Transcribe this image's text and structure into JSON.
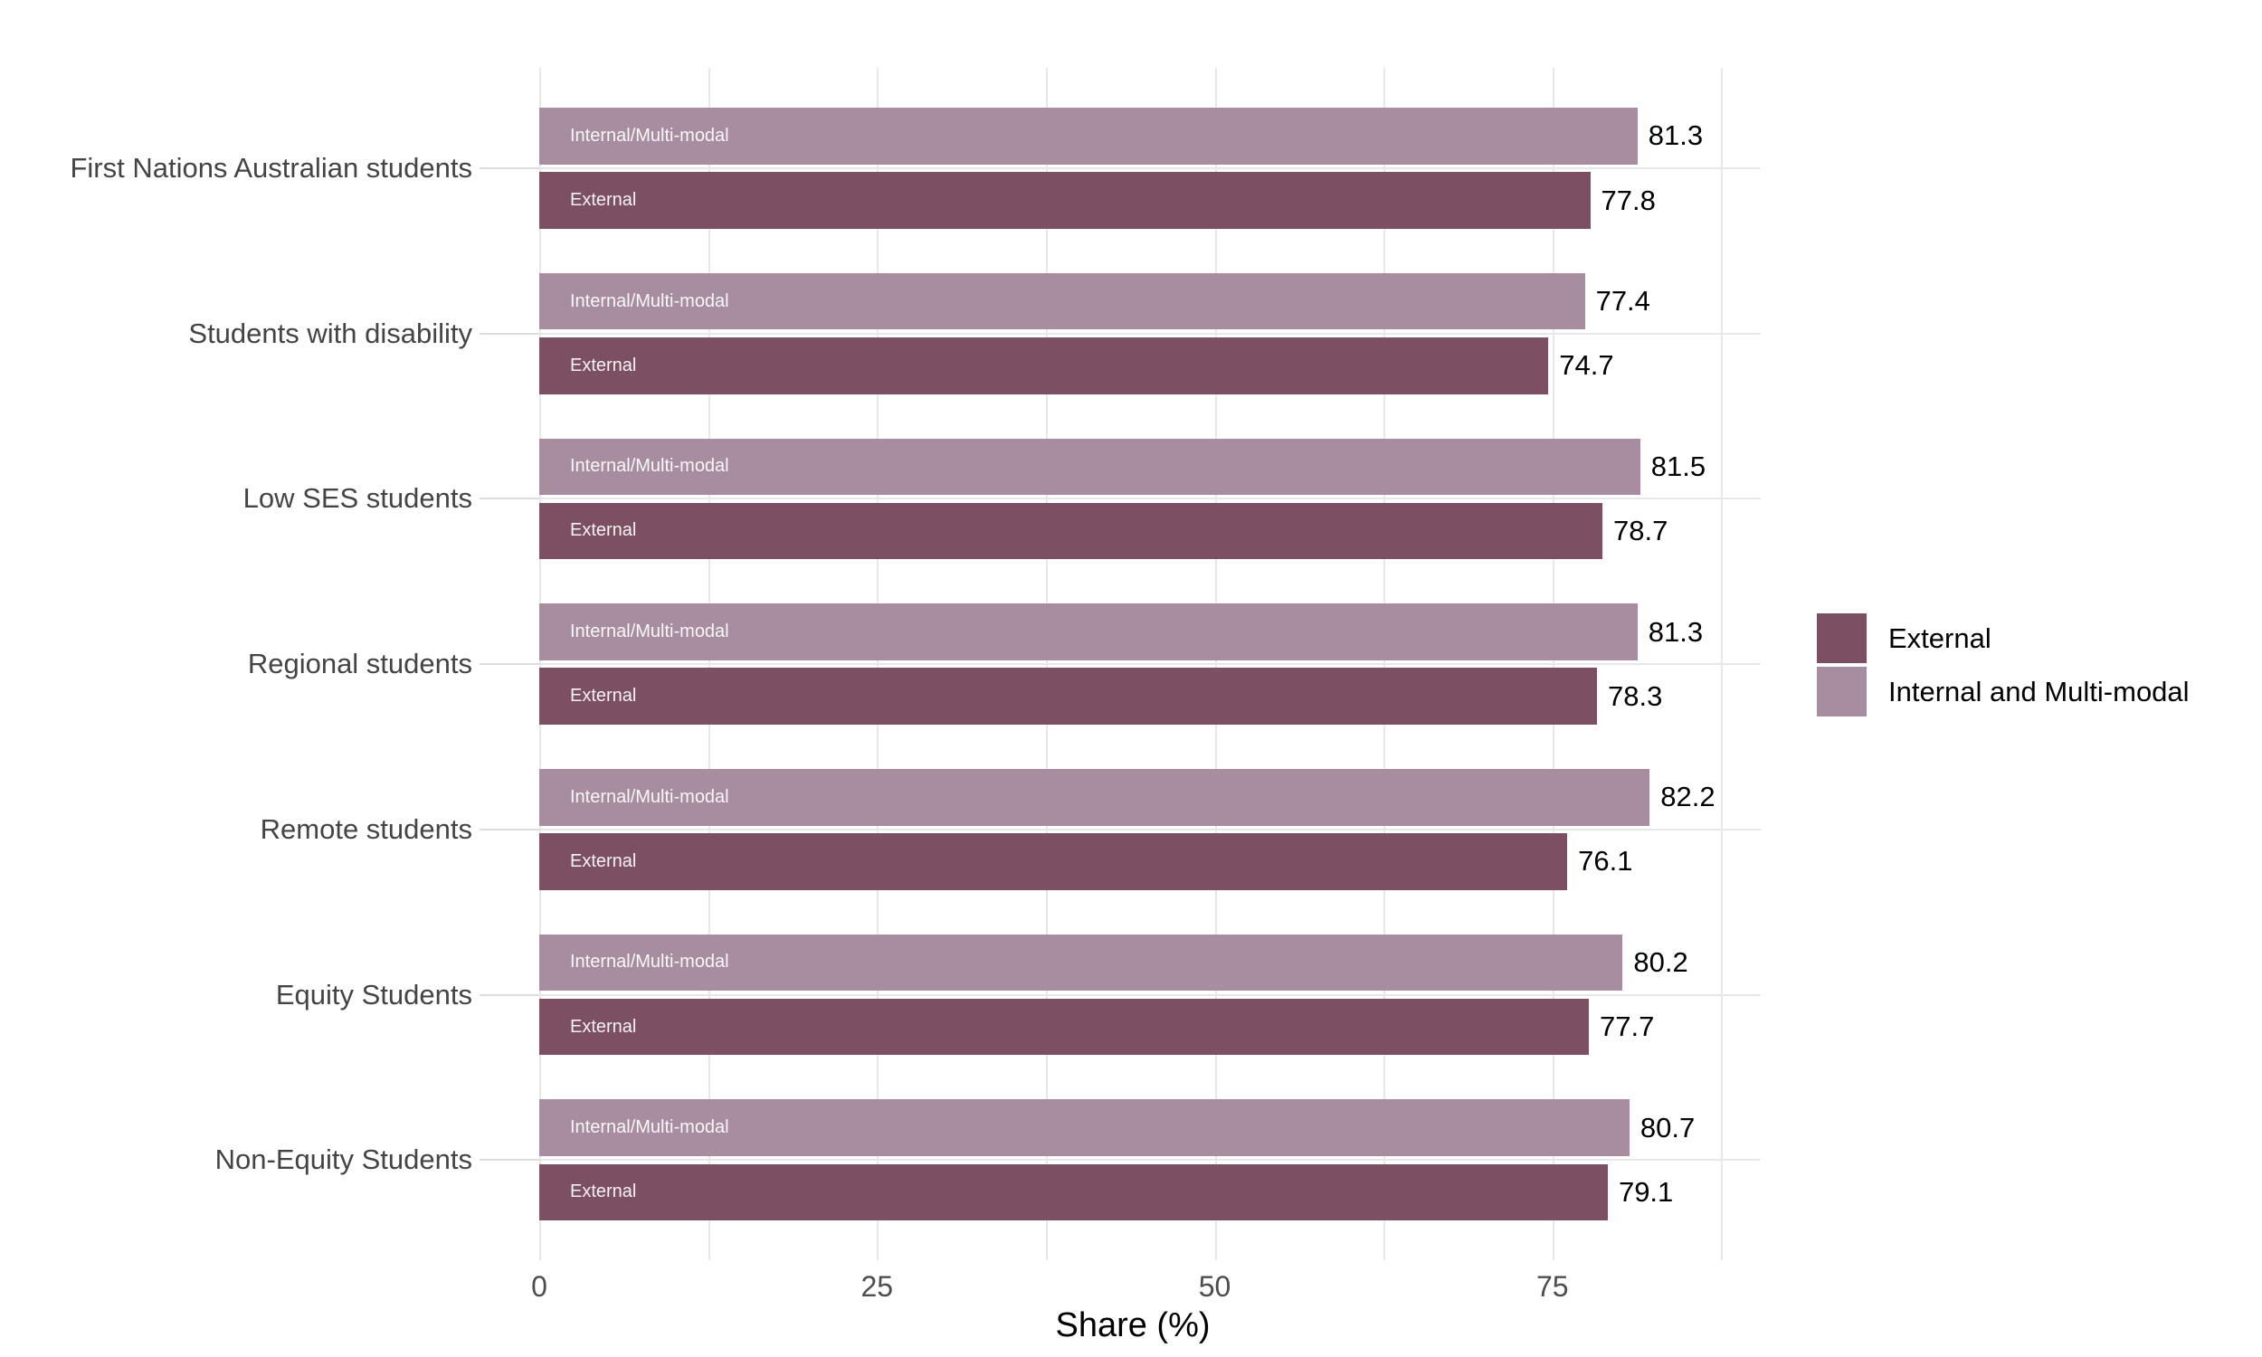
{
  "chart_data": {
    "type": "bar",
    "orientation": "horizontal",
    "title": "",
    "xlabel": "Share (%)",
    "ylabel": "",
    "categories": [
      "First Nations Australian students",
      "Students with disability",
      "Low SES students",
      "Regional students",
      "Remote students",
      "Equity Students",
      "Non-Equity Students"
    ],
    "series": [
      {
        "name": "Internal and Multi-modal",
        "bar_label": "Internal/Multi-modal",
        "color": "#A88DA0",
        "values": [
          81.3,
          77.4,
          81.5,
          81.3,
          82.2,
          80.2,
          80.7
        ]
      },
      {
        "name": "External",
        "bar_label": "External",
        "color": "#7C4F63",
        "values": [
          77.8,
          74.7,
          78.7,
          78.3,
          76.1,
          77.7,
          79.1
        ]
      }
    ],
    "value_label_decimals": 1,
    "xlim": [
      0,
      90.4
    ],
    "x_ticks": [
      0,
      25,
      50,
      75
    ],
    "x_gridline_step": 12.5,
    "grid": "light vertical gridlines every 12.5; light horizontal gridline at each category center",
    "legend_position": "right",
    "legend": {
      "items": [
        {
          "label": "External",
          "color": "#7C4F63"
        },
        {
          "label": "Internal and Multi-modal",
          "color": "#A88DA0"
        }
      ]
    },
    "colors": {
      "background": "#FFFFFF",
      "gridline": "#E8E8E8",
      "axis_tick": "#DCDCDC",
      "category_label_text": "#444444",
      "x_tick_text": "#4D4D4D",
      "value_label_text": "#000000",
      "bar_inner_label_text": "#FFFFFF"
    }
  }
}
